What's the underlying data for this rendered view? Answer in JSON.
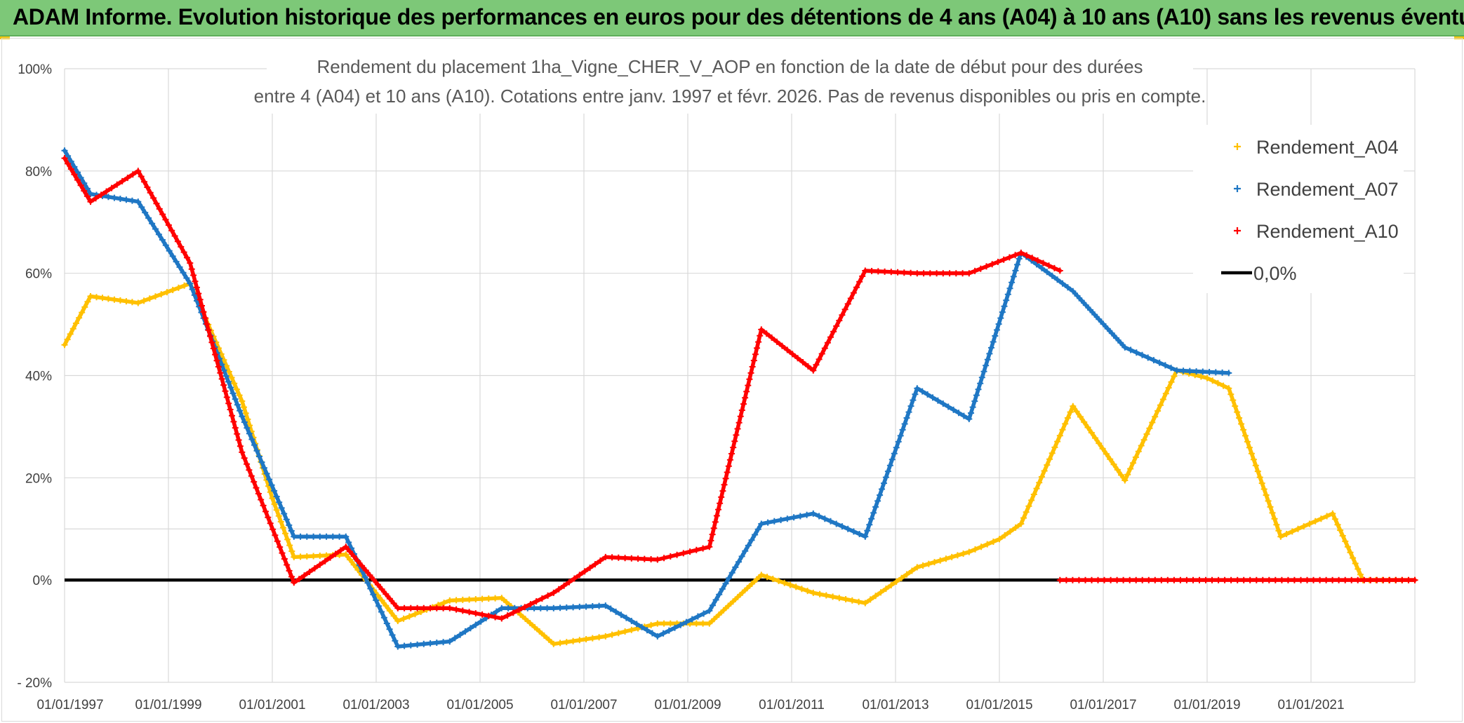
{
  "banner": {
    "title": "ADAM Informe. Evolution historique des performances en euros pour des détentions de 4 ans (A04) à 10 ans (A10) sans les revenus éventuels",
    "color": "#7dc878"
  },
  "chart_data": {
    "type": "scatter",
    "title_line1": "Rendement du placement 1ha_Vigne_CHER_V_AOP en fonction de la date de début pour des durées",
    "title_line2": "entre 4 (A04) et 10 ans (A10). Cotations entre janv. 1997 et févr. 2026. Pas de revenus disponibles ou pris en compte.",
    "xlabel": "",
    "ylabel": "",
    "x_range": [
      "01/01/1997",
      "01/01/2023"
    ],
    "x_ticks": [
      "01/01/1997",
      "01/01/1999",
      "01/01/2001",
      "01/01/2003",
      "01/01/2005",
      "01/01/2007",
      "01/01/2009",
      "01/01/2011",
      "01/01/2013",
      "01/01/2015",
      "01/01/2017",
      "01/01/2019",
      "01/01/2021"
    ],
    "ylim": [
      -20,
      100
    ],
    "y_ticks": [
      "100%",
      "80%",
      "60%",
      "40%",
      "20%",
      "0%",
      "- 20%"
    ],
    "y_tick_values": [
      100,
      80,
      60,
      40,
      20,
      0,
      -20
    ],
    "grid": true,
    "legend_position": "right",
    "series": [
      {
        "name": "Rendement_A04",
        "color": "#ffc000",
        "marker": "+",
        "points": [
          [
            "01/01/1997",
            46
          ],
          [
            "01/07/1997",
            55.5
          ],
          [
            "01/06/1998",
            54.2
          ],
          [
            "01/06/1999",
            58
          ],
          [
            "01/06/2000",
            35
          ],
          [
            "01/01/2001",
            16
          ],
          [
            "01/06/2001",
            4.5
          ],
          [
            "01/06/2002",
            5
          ],
          [
            "01/06/2003",
            -8
          ],
          [
            "01/06/2004",
            -4
          ],
          [
            "01/06/2005",
            -3.5
          ],
          [
            "01/06/2006",
            -12.5
          ],
          [
            "01/06/2007",
            -11
          ],
          [
            "01/06/2008",
            -8.5
          ],
          [
            "01/06/2009",
            -8.5
          ],
          [
            "01/06/2010",
            1
          ],
          [
            "01/06/2011",
            -2.5
          ],
          [
            "01/06/2012",
            -4.5
          ],
          [
            "01/06/2013",
            2.5
          ],
          [
            "01/06/2014",
            5.5
          ],
          [
            "01/01/2015",
            8
          ],
          [
            "01/06/2015",
            11
          ],
          [
            "01/06/2016",
            34
          ],
          [
            "01/06/2017",
            19.5
          ],
          [
            "01/06/2018",
            41
          ],
          [
            "01/01/2019",
            39.5
          ],
          [
            "01/06/2019",
            37.5
          ],
          [
            "01/06/2020",
            8.5
          ],
          [
            "01/06/2021",
            13
          ],
          [
            "01/01/2022",
            0
          ],
          [
            "01/01/2023",
            0
          ]
        ]
      },
      {
        "name": "Rendement_A07",
        "color": "#1f77c4",
        "marker": "+",
        "points": [
          [
            "01/01/1997",
            84
          ],
          [
            "01/07/1997",
            75.5
          ],
          [
            "01/06/1998",
            74
          ],
          [
            "01/06/1999",
            58
          ],
          [
            "01/06/2000",
            32
          ],
          [
            "01/06/2001",
            8.5
          ],
          [
            "01/06/2002",
            8.5
          ],
          [
            "01/06/2003",
            -13
          ],
          [
            "01/06/2004",
            -12
          ],
          [
            "01/06/2005",
            -5.5
          ],
          [
            "01/06/2006",
            -5.5
          ],
          [
            "01/06/2007",
            -5
          ],
          [
            "01/06/2008",
            -11
          ],
          [
            "01/06/2009",
            -6
          ],
          [
            "01/06/2010",
            11
          ],
          [
            "01/06/2011",
            13
          ],
          [
            "01/06/2012",
            8.5
          ],
          [
            "01/06/2013",
            37.5
          ],
          [
            "01/06/2014",
            31.5
          ],
          [
            "01/06/2015",
            64
          ],
          [
            "01/06/2016",
            56.5
          ],
          [
            "01/06/2017",
            45.5
          ],
          [
            "01/06/2018",
            41
          ],
          [
            "01/06/2019",
            40.5
          ]
        ]
      },
      {
        "name": "Rendement_A10",
        "color": "#ff0000",
        "marker": "+",
        "points": [
          [
            "01/01/1997",
            82.5
          ],
          [
            "01/07/1997",
            74
          ],
          [
            "01/06/1998",
            80
          ],
          [
            "01/06/1999",
            62
          ],
          [
            "01/06/2000",
            25
          ],
          [
            "01/06/2001",
            -0.5
          ],
          [
            "01/06/2002",
            6.5
          ],
          [
            "01/06/2003",
            -5.5
          ],
          [
            "01/06/2004",
            -5.5
          ],
          [
            "01/06/2005",
            -7.5
          ],
          [
            "01/06/2006",
            -2.5
          ],
          [
            "01/06/2007",
            4.5
          ],
          [
            "01/06/2008",
            4
          ],
          [
            "01/06/2009",
            6.5
          ],
          [
            "01/06/2010",
            49
          ],
          [
            "01/06/2011",
            41
          ],
          [
            "01/06/2012",
            60.5
          ],
          [
            "01/06/2013",
            60
          ],
          [
            "01/06/2014",
            60
          ],
          [
            "01/06/2015",
            64
          ],
          [
            "01/03/2016",
            60.5
          ]
        ],
        "zero_segment": [
          [
            "01/03/2016",
            0
          ],
          [
            "01/01/2023",
            0
          ]
        ]
      },
      {
        "name": "0,0%",
        "color": "#000000",
        "marker": "line",
        "points": [
          [
            "01/01/1997",
            0
          ],
          [
            "01/01/2023",
            0
          ]
        ]
      }
    ]
  }
}
